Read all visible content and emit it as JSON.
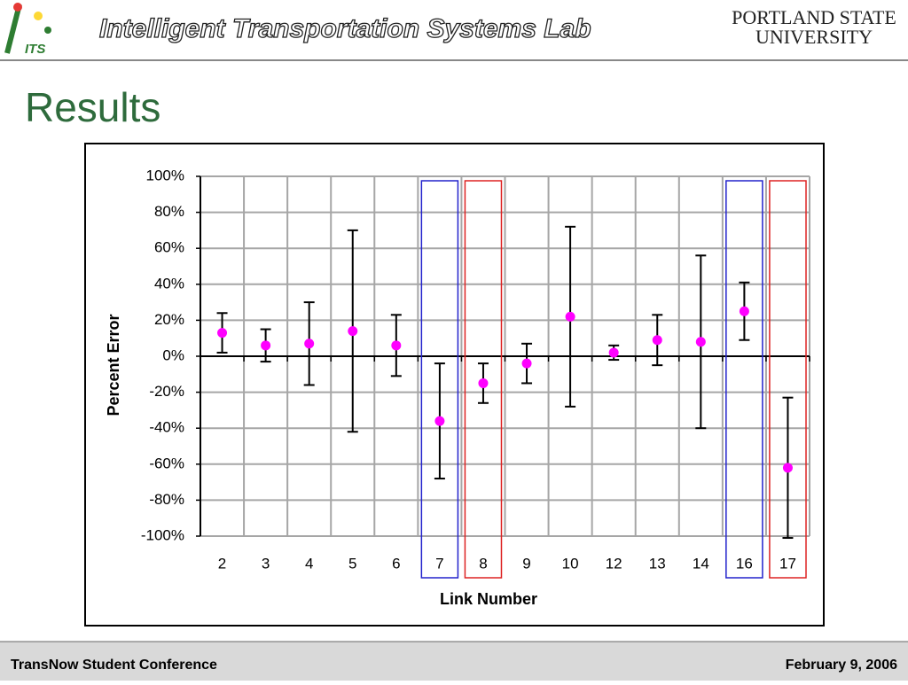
{
  "header": {
    "logo": "ITS",
    "title": "Intelligent Transportation Systems Lab",
    "university_line1": "PORTLAND STATE",
    "university_line2": "UNIVERSITY"
  },
  "slide_title": "Results",
  "chart_data": {
    "type": "errorbar",
    "x_label": "Link Number",
    "y_label": "Percent Error",
    "categories": [
      "2",
      "3",
      "4",
      "5",
      "6",
      "7",
      "8",
      "9",
      "10",
      "12",
      "13",
      "14",
      "16",
      "17"
    ],
    "values": [
      13,
      6,
      7,
      14,
      6,
      -36,
      -15,
      -4,
      22,
      2,
      9,
      8,
      25,
      -62
    ],
    "errors": [
      11,
      9,
      23,
      56,
      17,
      32,
      11,
      11,
      50,
      4,
      14,
      48,
      16,
      39
    ],
    "color": "#ff00ff",
    "outline_colors": [
      null,
      null,
      null,
      null,
      null,
      "#2222cc",
      "#dd2222",
      null,
      null,
      null,
      null,
      null,
      "#2222cc",
      "#dd2222"
    ],
    "ylim": [
      -100,
      100
    ],
    "yticks": [
      {
        "value": -100,
        "label": "-100%"
      },
      {
        "value": -80,
        "label": "-80%"
      },
      {
        "value": -60,
        "label": "-60%"
      },
      {
        "value": -40,
        "label": "-40%"
      },
      {
        "value": -20,
        "label": "-20%"
      },
      {
        "value": 0,
        "label": "0%"
      },
      {
        "value": 20,
        "label": "20%"
      },
      {
        "value": 40,
        "label": "40%"
      },
      {
        "value": 60,
        "label": "60%"
      },
      {
        "value": 80,
        "label": "80%"
      },
      {
        "value": 100,
        "label": "100%"
      }
    ],
    "grid": true
  },
  "footer": {
    "left": "TransNow Student Conference",
    "right": "February 9, 2006"
  }
}
